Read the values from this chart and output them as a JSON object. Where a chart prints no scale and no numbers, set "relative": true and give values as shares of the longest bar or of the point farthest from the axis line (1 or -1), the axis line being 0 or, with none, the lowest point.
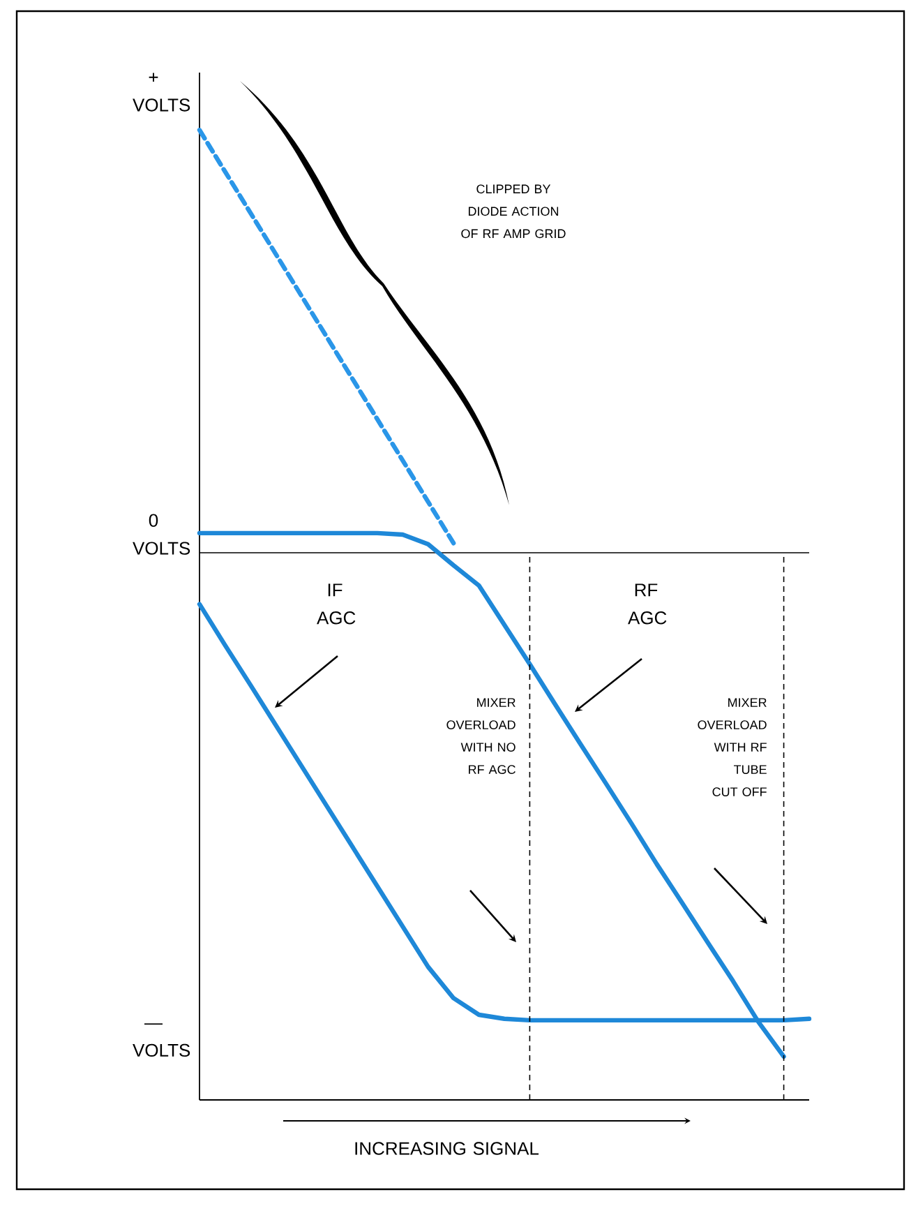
{
  "chart_data": {
    "type": "line",
    "relative": true,
    "categories": [
      null,
      null,
      null,
      null,
      null,
      null,
      null,
      null,
      null,
      null,
      null,
      null,
      null,
      null,
      null,
      null,
      null,
      null,
      null,
      null,
      null,
      null,
      null,
      null,
      null
    ],
    "xlabel": "INCREASING SIGNAL",
    "series": [
      {
        "color": "#1e88d8",
        "values": [
          -0.102,
          -0.183,
          -0.262,
          -0.342,
          -0.422,
          -0.502,
          -0.582,
          -0.662,
          -0.742,
          -0.822,
          -0.884,
          -0.917,
          -0.925,
          -0.928,
          -0.928,
          -0.928,
          -0.928,
          -0.928,
          -0.928,
          -0.928,
          -0.928,
          -0.928,
          -0.928,
          -0.928,
          -0.925
        ]
      },
      {
        "color": "#1e88d8",
        "values": [
          0.039,
          0.039,
          0.039,
          0.039,
          0.039,
          0.039,
          0.039,
          0.039,
          0.036,
          0.017,
          -0.025,
          -0.065,
          -0.143,
          -0.221,
          -0.301,
          -0.38,
          -0.458,
          -0.537,
          -0.618,
          -0.695,
          -0.773,
          -0.85,
          -0.931,
          -1.0,
          null
        ]
      },
      {
        "color": "#2a96e8",
        "line_style": "dashed",
        "values": [
          0.839,
          0.757,
          0.675,
          0.593,
          0.511,
          0.429,
          0.347,
          0.265,
          0.183,
          0.101,
          0.019,
          null,
          null,
          null,
          null,
          null,
          null,
          null,
          null,
          null,
          null,
          null,
          null,
          null,
          null
        ]
      }
    ],
    "ref_lines": [
      {
        "axis": "y",
        "value": 0,
        "color": "#000000",
        "line_style": "solid"
      }
    ],
    "annotations": [
      "IF AGC",
      "RF AGC",
      "+ VOLTS",
      "0 VOLTS",
      "— VOLTS",
      "CLIPPED BY DIODE ACTION OF RF AMP GRID",
      "MIXER OVERLOAD WITH NO RF AGC",
      "MIXER OVERLOAD WITH RF TUBE CUT OFF"
    ],
    "marker": "none",
    "line_style": "solid"
  }
}
